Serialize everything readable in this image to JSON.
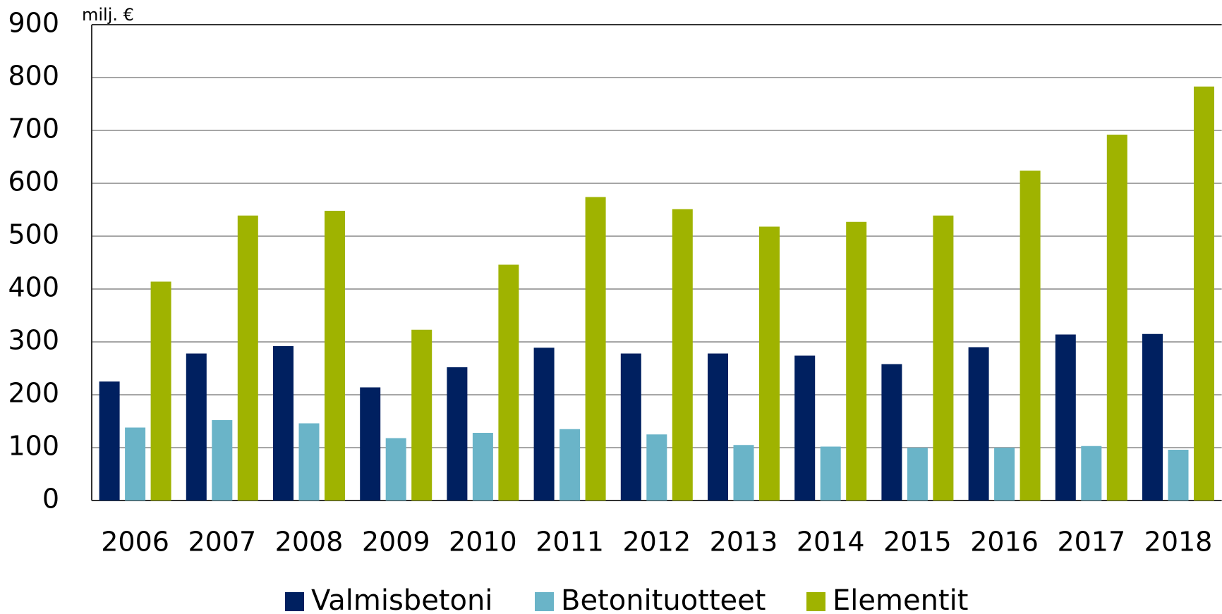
{
  "chart_data": {
    "type": "bar",
    "unit_label": "milj. €",
    "categories": [
      "2006",
      "2007",
      "2008",
      "2009",
      "2010",
      "2011",
      "2012",
      "2013",
      "2014",
      "2015",
      "2016",
      "2017",
      "2018"
    ],
    "series": [
      {
        "name": "Valmisbetoni",
        "color": "#002060",
        "values": [
          225,
          278,
          292,
          214,
          252,
          289,
          278,
          278,
          274,
          258,
          290,
          314,
          315
        ]
      },
      {
        "name": "Betonituotteet",
        "color": "#6ab4c8",
        "values": [
          138,
          152,
          146,
          118,
          128,
          135,
          125,
          105,
          102,
          100,
          100,
          103,
          96
        ]
      },
      {
        "name": "Elementit",
        "color": "#9fb300",
        "values": [
          414,
          539,
          548,
          323,
          446,
          574,
          551,
          518,
          527,
          539,
          624,
          692,
          783
        ]
      }
    ],
    "ylim": [
      0,
      900
    ],
    "yticks": [
      0,
      100,
      200,
      300,
      400,
      500,
      600,
      700,
      800,
      900
    ],
    "grid": true,
    "legend": "bottom"
  }
}
